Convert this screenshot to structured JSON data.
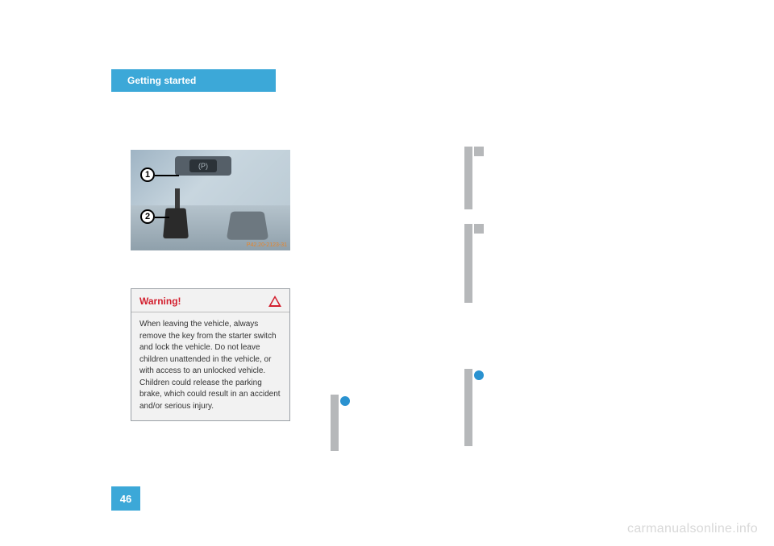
{
  "header": {
    "tab_label": "Getting started",
    "tab_bg": "#3ca8d8",
    "tab_fg": "#ffffff"
  },
  "page_number": "46",
  "photo": {
    "callout1": "1",
    "callout2": "2",
    "stamp": "P42.20-2123-31",
    "panel_glyph": "(P)"
  },
  "warning": {
    "title": "Warning!",
    "body": "When leaving the vehicle, always remove the key from the starter switch and lock the vehicle. Do not leave children unattended in the vehicle, or with access to an unlocked vehicle. Children could release the parking brake, which could result in an accident and/or serious injury."
  },
  "watermark": "carmanualsonline.info",
  "colors": {
    "accent": "#3ca8d8",
    "warning_red": "#d3202f",
    "gray_marker": "#b6b8ba",
    "page_bg": "#ffffff"
  }
}
